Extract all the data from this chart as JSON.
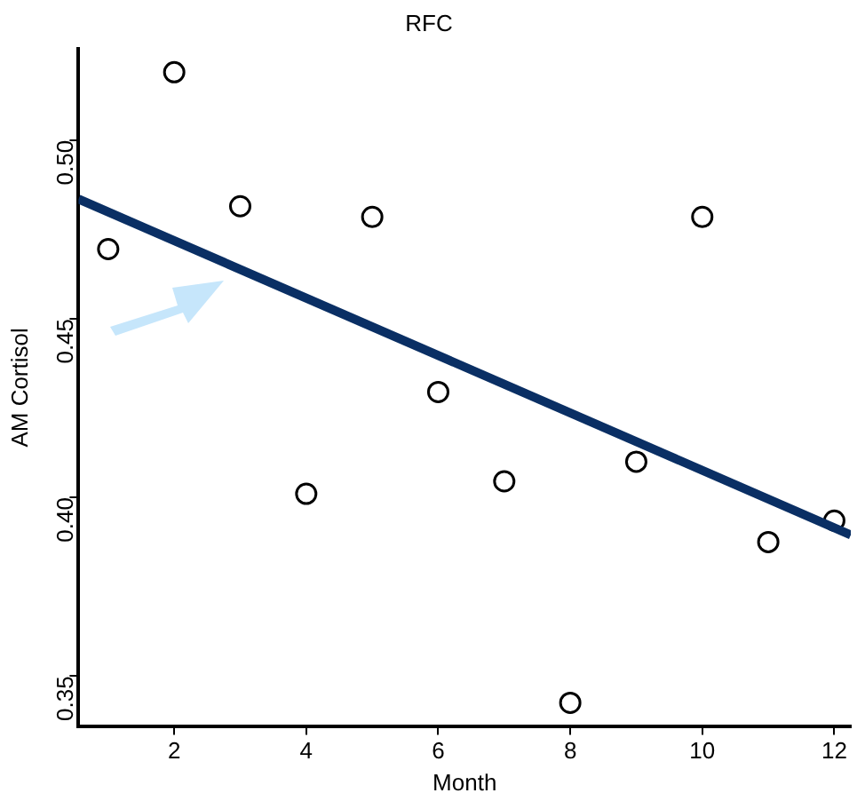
{
  "chart_data": {
    "type": "scatter",
    "title": "RFC",
    "xlabel": "Month",
    "ylabel": "AM Cortisol",
    "x": [
      1,
      2,
      3,
      4,
      5,
      6,
      7,
      8,
      9,
      10,
      11,
      12
    ],
    "series": [
      {
        "type": "scatter",
        "color": "#000000",
        "marker": "circle",
        "values": [
          0.4695,
          0.519,
          0.4815,
          0.401,
          0.4785,
          0.4295,
          0.4045,
          0.3425,
          0.41,
          0.4785,
          0.3875,
          0.3935
        ]
      },
      {
        "type": "line",
        "color": "#0a2f64",
        "marker": "none",
        "x": [
          0.55,
          12.25
        ],
        "values": [
          0.4835,
          0.3895
        ]
      }
    ],
    "xlim": [
      0.55,
      12.25
    ],
    "xticks": [
      2,
      4,
      6,
      8,
      10,
      12
    ],
    "ylim": [
      0.336,
      0.5255
    ],
    "yticks": [
      0.35,
      {
        "value": 0.4,
        "label": "0.40"
      },
      0.45,
      {
        "value": 0.5,
        "label": "0.50"
      }
    ],
    "grid": false,
    "legend": false
  }
}
